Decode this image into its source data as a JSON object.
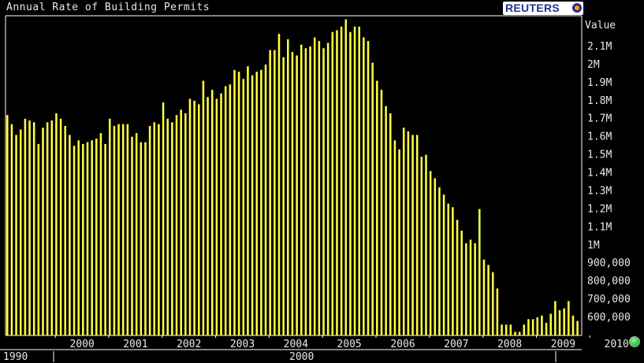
{
  "title": "Annual Rate of Building Permits",
  "logo": {
    "text": "REUTERS"
  },
  "chart_data": {
    "type": "bar",
    "title": "Annual Rate of Building Permits",
    "ylabel": "Value",
    "ylim": [
      500000,
      2270000
    ],
    "yticks": [
      {
        "value": 600000,
        "label": "600,000"
      },
      {
        "value": 700000,
        "label": "700,000"
      },
      {
        "value": 800000,
        "label": "800,000"
      },
      {
        "value": 900000,
        "label": "900,000"
      },
      {
        "value": 1000000,
        "label": "1M"
      },
      {
        "value": 1100000,
        "label": "1.1M"
      },
      {
        "value": 1200000,
        "label": "1.2M"
      },
      {
        "value": 1300000,
        "label": "1.3M"
      },
      {
        "value": 1400000,
        "label": "1.4M"
      },
      {
        "value": 1500000,
        "label": "1.5M"
      },
      {
        "value": 1600000,
        "label": "1.6M"
      },
      {
        "value": 1700000,
        "label": "1.7M"
      },
      {
        "value": 1800000,
        "label": "1.8M"
      },
      {
        "value": 1900000,
        "label": "1.9M"
      },
      {
        "value": 2000000,
        "label": "2M"
      },
      {
        "value": 2100000,
        "label": "2.1M"
      }
    ],
    "xticks": [
      "2000",
      "2001",
      "2002",
      "2003",
      "2004",
      "2005",
      "2006",
      "2007",
      "2008",
      "2009",
      "2010"
    ],
    "decades": [
      "1990",
      "2000"
    ],
    "color": "#ffff3c",
    "values": [
      1720000,
      1670000,
      1610000,
      1640000,
      1700000,
      1690000,
      1680000,
      1560000,
      1650000,
      1680000,
      1690000,
      1730000,
      1700000,
      1660000,
      1610000,
      1550000,
      1580000,
      1560000,
      1570000,
      1580000,
      1590000,
      1620000,
      1560000,
      1700000,
      1660000,
      1670000,
      1670000,
      1670000,
      1600000,
      1620000,
      1570000,
      1570000,
      1660000,
      1680000,
      1670000,
      1790000,
      1700000,
      1680000,
      1720000,
      1750000,
      1730000,
      1810000,
      1800000,
      1780000,
      1910000,
      1820000,
      1860000,
      1810000,
      1840000,
      1880000,
      1890000,
      1970000,
      1960000,
      1920000,
      1990000,
      1940000,
      1960000,
      1970000,
      2000000,
      2080000,
      2080000,
      2170000,
      2040000,
      2140000,
      2070000,
      2050000,
      2110000,
      2090000,
      2100000,
      2150000,
      2130000,
      2090000,
      2120000,
      2180000,
      2190000,
      2210000,
      2250000,
      2180000,
      2210000,
      2210000,
      2150000,
      2130000,
      2010000,
      1910000,
      1860000,
      1770000,
      1730000,
      1580000,
      1530000,
      1650000,
      1630000,
      1610000,
      1610000,
      1490000,
      1500000,
      1410000,
      1370000,
      1320000,
      1280000,
      1230000,
      1210000,
      1140000,
      1080000,
      1010000,
      1030000,
      1010000,
      1200000,
      920000,
      890000,
      850000,
      760000,
      560000,
      560000,
      560000,
      520000,
      520000,
      560000,
      590000,
      590000,
      600000,
      610000,
      570000,
      620000,
      690000,
      640000,
      650000,
      690000,
      610000,
      580000
    ]
  }
}
